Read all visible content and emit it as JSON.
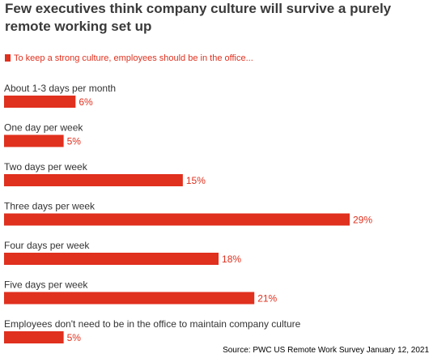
{
  "chart_data": {
    "type": "bar",
    "orientation": "horizontal",
    "title": "Few executives think company culture will survive a purely remote working set up",
    "legend": "To keep a strong culture, employees should be in the office...",
    "categories": [
      "About 1-3 days per month",
      "One day per week",
      "Two days per week",
      "Three days per week",
      "Four days per week",
      "Five days per week",
      "Employees don't need to be in the office to maintain company culture"
    ],
    "values": [
      6,
      5,
      15,
      29,
      18,
      21,
      5
    ],
    "value_labels": [
      "6%",
      "5%",
      "15%",
      "29%",
      "18%",
      "21%",
      "5%"
    ],
    "unit": "%",
    "grid": false,
    "bar_color": "#e0301e"
  },
  "source": "Source: PWC US Remote Work Survey January 12, 2021"
}
